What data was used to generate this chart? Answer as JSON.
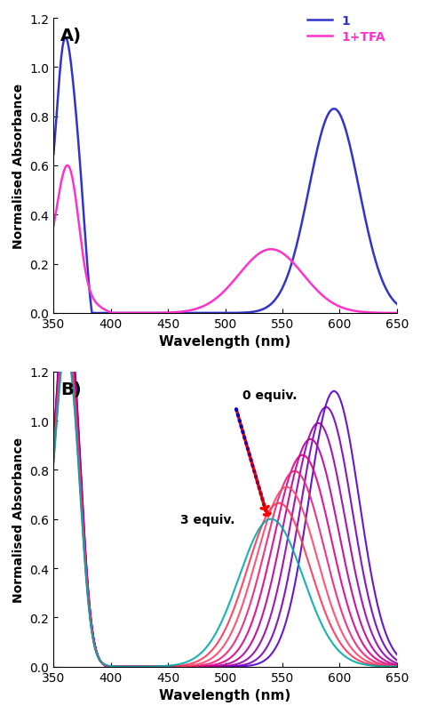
{
  "panel_A": {
    "label": "A)",
    "legend_1": "1",
    "legend_2": "1+TFA",
    "color_1": "#3333cc",
    "color_2": "#ff33cc",
    "xlabel": "Wavelength (nm)",
    "ylabel": "Normalised Absorbance",
    "xlim": [
      350,
      650
    ],
    "ylim": [
      0,
      1.2
    ],
    "yticks": [
      0,
      0.2,
      0.4,
      0.6,
      0.8,
      1.0,
      1.2
    ],
    "xticks": [
      350,
      400,
      450,
      500,
      550,
      600,
      650
    ]
  },
  "panel_B": {
    "label": "B)",
    "xlabel": "Wavelength (nm)",
    "ylabel": "Normalised Absorbance",
    "xlim": [
      350,
      650
    ],
    "ylim": [
      0,
      1.2
    ],
    "yticks": [
      0,
      0.2,
      0.4,
      0.6,
      0.8,
      1.0,
      1.2
    ],
    "xticks": [
      350,
      400,
      450,
      500,
      550,
      600,
      650
    ],
    "annotation_0": "0 equiv.",
    "annotation_3": "3 equiv.",
    "n_curves": 9
  }
}
